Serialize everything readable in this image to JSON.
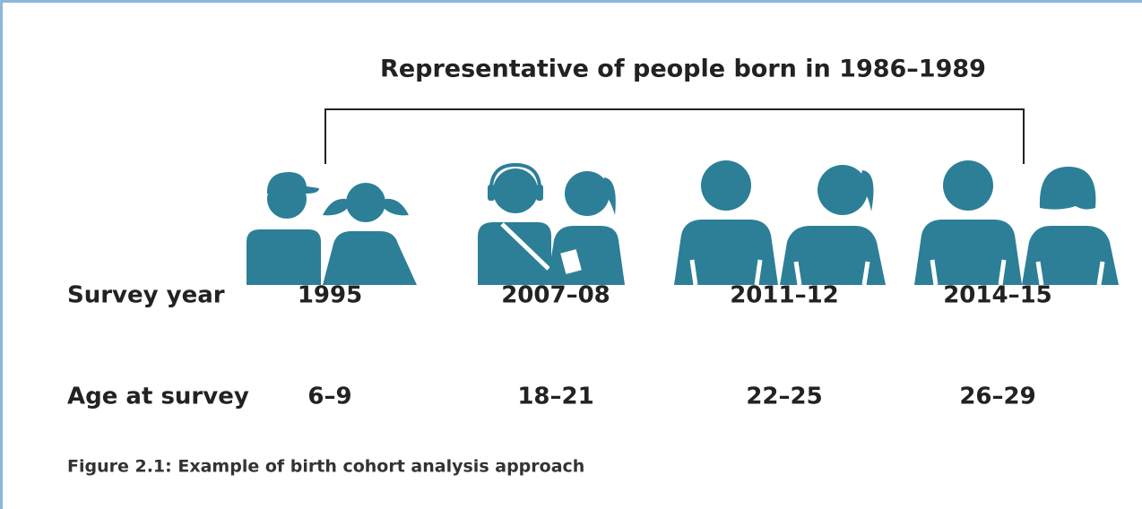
{
  "title": "Representative of people born in 1986–1989",
  "row_labels": {
    "survey_year": "Survey year",
    "age": "Age at survey"
  },
  "groups": [
    {
      "survey_year": "1995",
      "age": "6–9"
    },
    {
      "survey_year": "2007–08",
      "age": "18–21"
    },
    {
      "survey_year": "2011–12",
      "age": "22–25"
    },
    {
      "survey_year": "2014–15",
      "age": "26–29"
    }
  ],
  "caption": "Figure 2.1: Example of birth cohort analysis approach"
}
